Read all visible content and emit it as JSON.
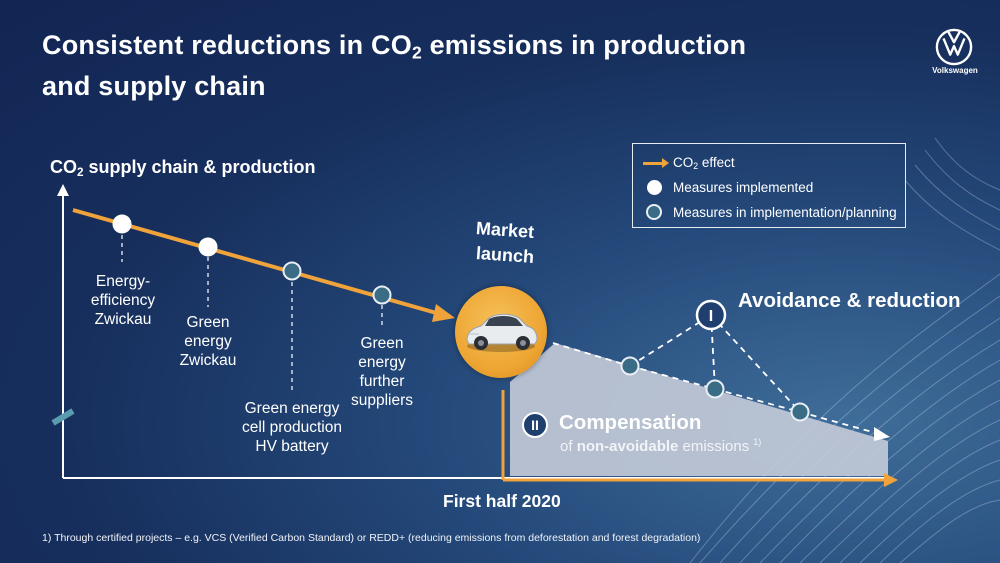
{
  "title": {
    "line1_pre": "Consistent reductions in CO",
    "line1_sub": "2",
    "line1_post": " emissions in production",
    "line2": "and supply chain"
  },
  "brand": {
    "name": "Volkswagen",
    "icon": "vw-logo-icon"
  },
  "y_axis_title": {
    "pre": "CO",
    "sub": "2",
    "post": " supply chain & production"
  },
  "legend": {
    "effect_pre": "CO",
    "effect_sub": "2",
    "effect_post": " effect",
    "implemented": "Measures implemented",
    "planning": "Measures in implementation/planning"
  },
  "measures": [
    {
      "label_lines": [
        "Energy-",
        "efficiency",
        "Zwickau"
      ],
      "status": "implemented"
    },
    {
      "label_lines": [
        "Green",
        "energy",
        "Zwickau"
      ],
      "status": "implemented"
    },
    {
      "label_lines": [
        "Green energy",
        "cell production",
        "HV battery"
      ],
      "status": "planning"
    },
    {
      "label_lines": [
        "Green",
        "energy",
        "further",
        "suppliers"
      ],
      "status": "planning"
    }
  ],
  "market_launch": {
    "line1": "Market",
    "line2": "launch"
  },
  "avoidance": {
    "badge": "I",
    "label": "Avoidance & reduction"
  },
  "compensation": {
    "badge": "II",
    "title": "Compensation",
    "sub_pre": "of ",
    "sub_bold": "non-avoidable",
    "sub_post": " emissions",
    "footnote_ref": "1)"
  },
  "x_axis_label": "First half 2020",
  "footnote": "1) Through certified projects – e.g.  VCS (Verified Carbon Standard) or REDD+ (reducing emissions from deforestation and forest degradation)",
  "colors": {
    "accent_orange": "#f0a33a",
    "measure_implemented": "#ffffff",
    "measure_planning": "#3b6c85",
    "compensation_area": "#c4cbd8"
  }
}
